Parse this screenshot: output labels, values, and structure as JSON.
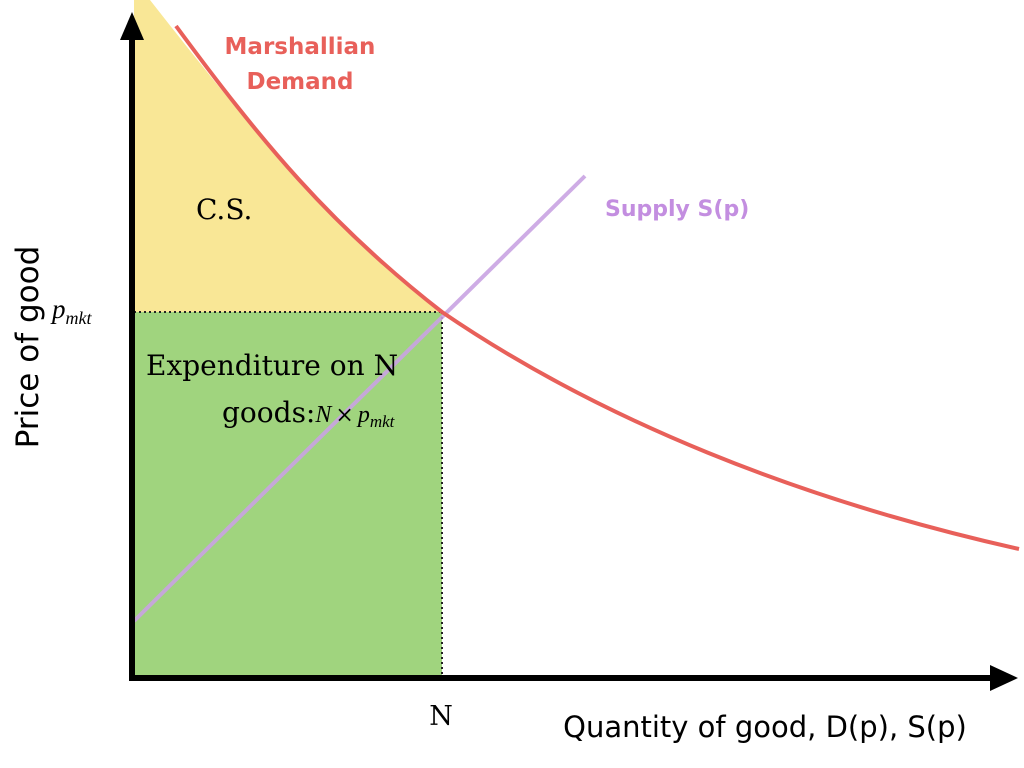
{
  "labels": {
    "demand_line1": "Marshallian",
    "demand_line2": "Demand",
    "supply": "Supply S(p)",
    "consumer_surplus": "C.S.",
    "expenditure_line1": "Expenditure on N",
    "expenditure_line2_prefix": "goods:",
    "expenditure_N": "N",
    "expenditure_times": "×",
    "expenditure_p": "p",
    "expenditure_sub": "mkt",
    "price_tick_p": "p",
    "price_tick_sub": "mkt",
    "quantity_tick": "N",
    "y_axis": "Price of good",
    "x_axis": "Quantity of good, D(p), S(p)"
  },
  "colors": {
    "demand": "#e8605a",
    "supply": "#c9a3e2",
    "consumer_surplus_fill": "#f9e796",
    "expenditure_fill": "#a0d47e",
    "axis": "#000000"
  }
}
